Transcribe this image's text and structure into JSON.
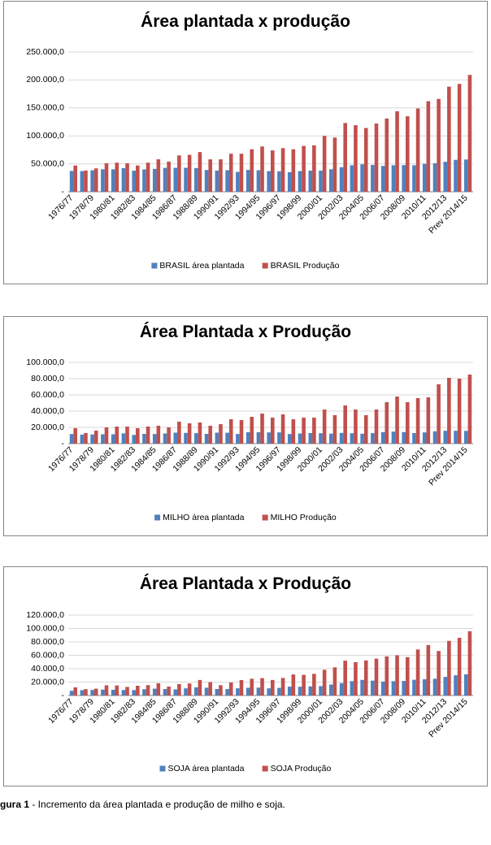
{
  "chart_data": [
    {
      "type": "bar",
      "title": "Área plantada x produção",
      "categories": [
        "1976/77",
        null,
        "1978/79",
        null,
        "1980/81",
        null,
        "1982/83",
        null,
        "1984/85",
        null,
        "1986/87",
        null,
        "1988/89",
        null,
        "1990/91",
        null,
        "1992/93",
        null,
        "1994/95",
        null,
        "1996/97",
        null,
        "1998/99",
        null,
        "2000/01",
        null,
        "2002/03",
        null,
        "2004/05",
        null,
        "2006/07",
        null,
        "2008/09",
        null,
        "2010/11",
        null,
        "2012/13",
        null,
        "Prev 2014/15"
      ],
      "series": [
        {
          "name": "BRASIL área plantada",
          "color": "#4f81bd",
          "values": [
            37300,
            36900,
            38400,
            40200,
            40100,
            42200,
            37600,
            40000,
            40900,
            42700,
            42800,
            42900,
            42400,
            38900,
            37900,
            38500,
            35600,
            39000,
            38500,
            36900,
            36600,
            35000,
            36900,
            37800,
            37800,
            40200,
            43900,
            47400,
            49100,
            47900,
            46200,
            47400,
            47700,
            47400,
            49900,
            50900,
            53600,
            57100,
            57600
          ]
        },
        {
          "name": "BRASIL Produção",
          "color": "#c0504d",
          "values": [
            46900,
            38000,
            41800,
            50900,
            52000,
            51000,
            47000,
            52000,
            58000,
            54000,
            65000,
            66000,
            71000,
            58000,
            58000,
            68000,
            68000,
            76000,
            81000,
            74000,
            78000,
            76000,
            82000,
            83000,
            100000,
            97000,
            123000,
            119000,
            114000,
            122000,
            131000,
            144000,
            135000,
            149000,
            162000,
            166000,
            188000,
            193000,
            209000
          ]
        }
      ],
      "ylim": [
        0,
        250000
      ],
      "yticks": [
        {
          "value": 0,
          "label": "-"
        },
        {
          "value": 50000,
          "label": "50.000,0"
        },
        {
          "value": 100000,
          "label": "100.000,0"
        },
        {
          "value": 150000,
          "label": "150.000,0"
        },
        {
          "value": 200000,
          "label": "200.000,0"
        },
        {
          "value": 250000,
          "label": "250.000,0"
        }
      ],
      "grid": true,
      "legend": "bottom"
    },
    {
      "type": "bar",
      "title": "Área Plantada x Produção",
      "categories": [
        "1976/77",
        null,
        "1978/79",
        null,
        "1980/81",
        null,
        "1982/83",
        null,
        "1984/85",
        null,
        "1986/87",
        null,
        "1988/89",
        null,
        "1990/91",
        null,
        "1992/93",
        null,
        "1994/95",
        null,
        "1996/97",
        null,
        "1998/99",
        null,
        "2000/01",
        null,
        "2002/03",
        null,
        "2004/05",
        null,
        "2006/07",
        null,
        "2008/09",
        null,
        "2010/11",
        null,
        "2012/13",
        null,
        "Prev 2014/15"
      ],
      "series": [
        {
          "name": "MILHO área plantada",
          "color": "#4f81bd",
          "values": [
            11800,
            11100,
            11300,
            11500,
            11500,
            12600,
            10700,
            12000,
            11800,
            12500,
            13500,
            13200,
            12900,
            12000,
            13500,
            13400,
            11900,
            14000,
            14000,
            13800,
            13800,
            11800,
            12500,
            13000,
            12800,
            12300,
            13200,
            12800,
            12200,
            12900,
            14100,
            14800,
            14200,
            13000,
            13800,
            15200,
            15800,
            15800,
            15700
          ]
        },
        {
          "name": "MILHO Produção",
          "color": "#c0504d",
          "values": [
            19000,
            13000,
            16000,
            20000,
            21000,
            21000,
            19000,
            21000,
            22000,
            20000,
            27000,
            25000,
            26000,
            22000,
            24000,
            30000,
            29000,
            33000,
            37000,
            32000,
            36000,
            30000,
            32000,
            32000,
            42000,
            35000,
            47000,
            42000,
            35000,
            42000,
            51000,
            58000,
            51000,
            56000,
            57000,
            73000,
            81000,
            80000,
            85000
          ]
        }
      ],
      "ylim": [
        0,
        100000
      ],
      "yticks": [
        {
          "value": 0,
          "label": "-"
        },
        {
          "value": 20000,
          "label": "20.000,0"
        },
        {
          "value": 40000,
          "label": "40.000,0"
        },
        {
          "value": 60000,
          "label": "60.000,0"
        },
        {
          "value": 80000,
          "label": "80.000,0"
        },
        {
          "value": 100000,
          "label": "100.000,0"
        }
      ],
      "grid": true,
      "legend": "bottom"
    },
    {
      "type": "bar",
      "title": "Área Plantada x Produção",
      "categories": [
        "1976/77",
        null,
        "1978/79",
        null,
        "1980/81",
        null,
        "1982/83",
        null,
        "1984/85",
        null,
        "1986/87",
        null,
        "1988/89",
        null,
        "1990/91",
        null,
        "1992/93",
        null,
        "1994/95",
        null,
        "1996/97",
        null,
        "1998/99",
        null,
        "2000/01",
        null,
        "2002/03",
        null,
        "2004/05",
        null,
        "2006/07",
        null,
        "2008/09",
        null,
        "2010/11",
        null,
        "2012/13",
        null,
        "Prev 2014/15"
      ],
      "series": [
        {
          "name": "SOJA área plantada",
          "color": "#4f81bd",
          "values": [
            7000,
            8000,
            8300,
            8800,
            8500,
            8200,
            8100,
            9400,
            10200,
            9600,
            9200,
            10700,
            12200,
            11600,
            9700,
            9600,
            10700,
            11500,
            11700,
            10700,
            11400,
            13200,
            13100,
            13600,
            14000,
            16400,
            18500,
            21400,
            23300,
            22200,
            20700,
            21300,
            21700,
            23500,
            24200,
            25000,
            27700,
            30200,
            31600
          ]
        },
        {
          "name": "SOJA Produção",
          "color": "#c0504d",
          "values": [
            12100,
            9500,
            10200,
            15200,
            15000,
            12800,
            14600,
            15500,
            18300,
            13300,
            17000,
            18000,
            23200,
            19900,
            15400,
            19400,
            23000,
            25000,
            25900,
            23200,
            26200,
            31400,
            30800,
            32300,
            38400,
            42000,
            52000,
            49800,
            52300,
            55000,
            58400,
            60000,
            57200,
            68700,
            75300,
            66400,
            81500,
            86100,
            95900
          ]
        }
      ],
      "ylim": [
        0,
        120000
      ],
      "yticks": [
        {
          "value": 0,
          "label": "-"
        },
        {
          "value": 20000,
          "label": "20.000,0"
        },
        {
          "value": 40000,
          "label": "40.000,0"
        },
        {
          "value": 60000,
          "label": "60.000,0"
        },
        {
          "value": 80000,
          "label": "80.000,0"
        },
        {
          "value": 100000,
          "label": "100.000,0"
        },
        {
          "value": 120000,
          "label": "120.000,0"
        }
      ],
      "grid": true,
      "legend": "bottom"
    }
  ],
  "caption": {
    "label": "gura 1",
    "text": " - Incremento da área plantada e produção de milho e soja."
  }
}
